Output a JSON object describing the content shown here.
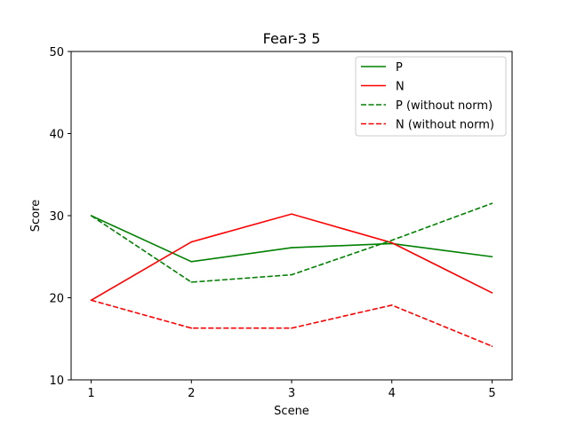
{
  "chart_data": {
    "type": "line",
    "title": "Fear-3 5",
    "xlabel": "Scene",
    "ylabel": "Score",
    "x": [
      1,
      2,
      3,
      4,
      5
    ],
    "xticks": [
      "1",
      "2",
      "3",
      "4",
      "5"
    ],
    "ylim": [
      10,
      50
    ],
    "yticks": [
      "10",
      "20",
      "30",
      "40",
      "50"
    ],
    "grid": false,
    "legend_position": "top-right",
    "series": [
      {
        "name": "P",
        "values": [
          30.0,
          24.4,
          26.1,
          26.6,
          25.0
        ],
        "color": "#008000",
        "style": "solid"
      },
      {
        "name": "N",
        "values": [
          19.7,
          26.8,
          30.2,
          26.7,
          20.6
        ],
        "color": "#ff0000",
        "style": "solid"
      },
      {
        "name": "P (without norm)",
        "values": [
          30.0,
          21.9,
          22.8,
          27.0,
          31.5
        ],
        "color": "#008000",
        "style": "dashed"
      },
      {
        "name": "N (without norm)",
        "values": [
          19.7,
          16.3,
          16.3,
          19.1,
          14.1
        ],
        "color": "#ff0000",
        "style": "dashed"
      }
    ]
  }
}
